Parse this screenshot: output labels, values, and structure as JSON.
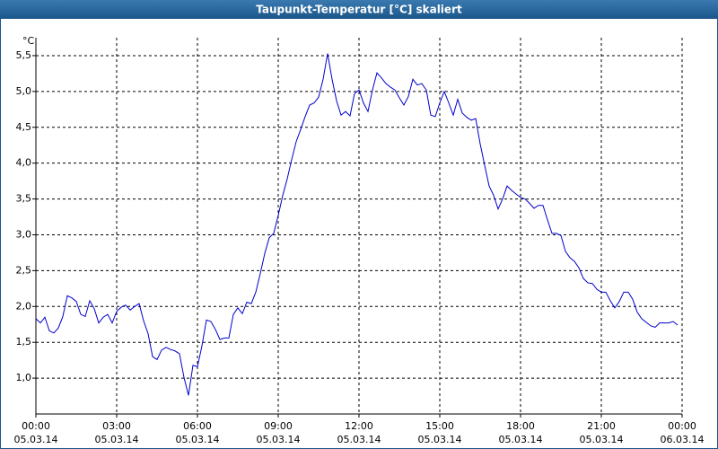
{
  "chart_data": {
    "type": "line",
    "title": "Taupunkt-Temperatur [°C] skaliert",
    "y_unit": "°C",
    "x": [
      0,
      10,
      20,
      30,
      40,
      50,
      60,
      70,
      80,
      90,
      100,
      110,
      120,
      130,
      140,
      150,
      160,
      170,
      180,
      190,
      200,
      210,
      220,
      230,
      240,
      250,
      260,
      270,
      280,
      290,
      300,
      310,
      320,
      330,
      340,
      350,
      360,
      370,
      380,
      390,
      400,
      410,
      420,
      430,
      440,
      450,
      460,
      470,
      480,
      490,
      500,
      510,
      520,
      530,
      540,
      550,
      560,
      570,
      580,
      590,
      600,
      610,
      620,
      630,
      640,
      650,
      660,
      670,
      680,
      690,
      700,
      710,
      720,
      730,
      740,
      750,
      760,
      770,
      780,
      790,
      800,
      810,
      820,
      830,
      840,
      850,
      860,
      870,
      880,
      890,
      900,
      910,
      920,
      930,
      940,
      950,
      960,
      970,
      980,
      990,
      1000,
      1010,
      1020,
      1030,
      1040,
      1050,
      1060,
      1070,
      1080,
      1090,
      1100,
      1110,
      1120,
      1130,
      1140,
      1150,
      1160,
      1170,
      1180,
      1190,
      1200,
      1210,
      1220,
      1230,
      1240,
      1250,
      1260,
      1270,
      1280,
      1290,
      1300,
      1310,
      1320,
      1330,
      1340,
      1350,
      1360,
      1370,
      1380,
      1390,
      1400,
      1410,
      1420,
      1430
    ],
    "series": [
      {
        "color": "#0000cc",
        "values": [
          1.83,
          1.77,
          1.85,
          1.66,
          1.63,
          1.7,
          1.86,
          2.15,
          2.12,
          2.07,
          1.89,
          1.86,
          2.08,
          1.97,
          1.77,
          1.85,
          1.89,
          1.77,
          1.93,
          1.99,
          2.02,
          1.95,
          2.0,
          2.04,
          1.8,
          1.62,
          1.3,
          1.26,
          1.39,
          1.43,
          1.4,
          1.38,
          1.34,
          1.01,
          0.76,
          1.18,
          1.16,
          1.45,
          1.81,
          1.79,
          1.68,
          1.54,
          1.56,
          1.56,
          1.89,
          1.98,
          1.9,
          2.06,
          2.04,
          2.2,
          2.46,
          2.74,
          2.96,
          3.02,
          3.27,
          3.55,
          3.78,
          4.05,
          4.3,
          4.47,
          4.65,
          4.81,
          4.84,
          4.92,
          5.17,
          5.53,
          5.17,
          4.87,
          4.67,
          4.72,
          4.66,
          4.97,
          5.02,
          4.84,
          4.72,
          5.02,
          5.26,
          5.19,
          5.11,
          5.06,
          5.02,
          4.91,
          4.81,
          4.93,
          5.17,
          5.09,
          5.11,
          5.02,
          4.67,
          4.65,
          4.84,
          5.0,
          4.84,
          4.67,
          4.89,
          4.7,
          4.64,
          4.6,
          4.62,
          4.27,
          3.97,
          3.68,
          3.55,
          3.36,
          3.5,
          3.68,
          3.62,
          3.57,
          3.52,
          3.5,
          3.44,
          3.37,
          3.41,
          3.41,
          3.21,
          3.02,
          3.02,
          2.99,
          2.77,
          2.68,
          2.63,
          2.54,
          2.39,
          2.33,
          2.32,
          2.24,
          2.2,
          2.2,
          2.08,
          1.98,
          2.07,
          2.2,
          2.2,
          2.1,
          1.92,
          1.83,
          1.78,
          1.73,
          1.71,
          1.77,
          1.77,
          1.77,
          1.79,
          1.74
        ]
      }
    ],
    "xlim": [
      0,
      1440
    ],
    "xticks": [
      {
        "value": 0,
        "label": "00:00",
        "date": "05.03.14"
      },
      {
        "value": 180,
        "label": "03:00",
        "date": "05.03.14"
      },
      {
        "value": 360,
        "label": "06:00",
        "date": "05.03.14"
      },
      {
        "value": 540,
        "label": "09:00",
        "date": "05.03.14"
      },
      {
        "value": 720,
        "label": "12:00",
        "date": "05.03.14"
      },
      {
        "value": 900,
        "label": "15:00",
        "date": "05.03.14"
      },
      {
        "value": 1080,
        "label": "18:00",
        "date": "05.03.14"
      },
      {
        "value": 1260,
        "label": "21:00",
        "date": "05.03.14"
      },
      {
        "value": 1440,
        "label": "00:00",
        "date": "06.03.14"
      }
    ],
    "ylim": [
      0.5,
      5.75
    ],
    "yticks": [
      {
        "value": 1.0,
        "label": "1,0"
      },
      {
        "value": 1.5,
        "label": "1,5"
      },
      {
        "value": 2.0,
        "label": "2,0"
      },
      {
        "value": 2.5,
        "label": "2,5"
      },
      {
        "value": 3.0,
        "label": "3,0"
      },
      {
        "value": 3.5,
        "label": "3,5"
      },
      {
        "value": 4.0,
        "label": "4,0"
      },
      {
        "value": 4.5,
        "label": "4,5"
      },
      {
        "value": 5.0,
        "label": "5,0"
      },
      {
        "value": 5.5,
        "label": "5,5"
      }
    ],
    "grid": true
  }
}
